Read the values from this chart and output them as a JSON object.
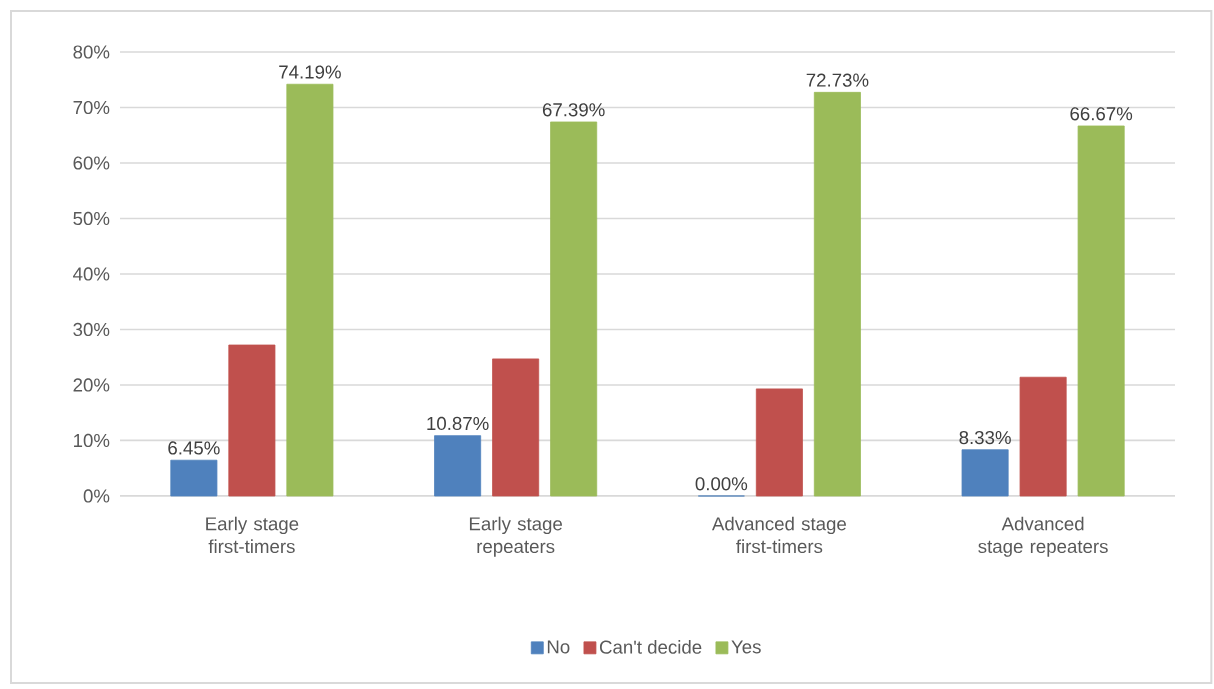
{
  "chart_data": {
    "type": "bar",
    "categories": [
      "Early stage first-timers",
      "Early stage repeaters",
      "Advanced stage first-timers",
      "Advanced stage repeaters"
    ],
    "series": [
      {
        "name": "No",
        "color": "#4f81bd",
        "values": [
          6.45,
          10.87,
          0.0,
          8.33
        ],
        "value_labels": [
          "6.45%",
          "10.87%",
          "0.00%",
          "8.33%"
        ]
      },
      {
        "name": "Can't decide",
        "color": "#c0504d",
        "values": [
          27.2,
          24.7,
          19.3,
          21.4
        ]
      },
      {
        "name": "Yes",
        "color": "#9bbb59",
        "values": [
          74.19,
          67.39,
          72.73,
          66.67
        ],
        "value_labels": [
          "74.19%",
          "67.39%",
          "72.73%",
          "66.67%"
        ]
      }
    ],
    "ylim": [
      0,
      80
    ],
    "yticks": [
      {
        "value": 0,
        "label": "0%"
      },
      {
        "value": 10,
        "label": "10%"
      },
      {
        "value": 20,
        "label": "20%"
      },
      {
        "value": 30,
        "label": "30%"
      },
      {
        "value": 40,
        "label": "40%"
      },
      {
        "value": 50,
        "label": "50%"
      },
      {
        "value": 60,
        "label": "60%"
      },
      {
        "value": 70,
        "label": "70%"
      },
      {
        "value": 80,
        "label": "80%"
      }
    ],
    "grid": "y",
    "legend": "bottom"
  }
}
